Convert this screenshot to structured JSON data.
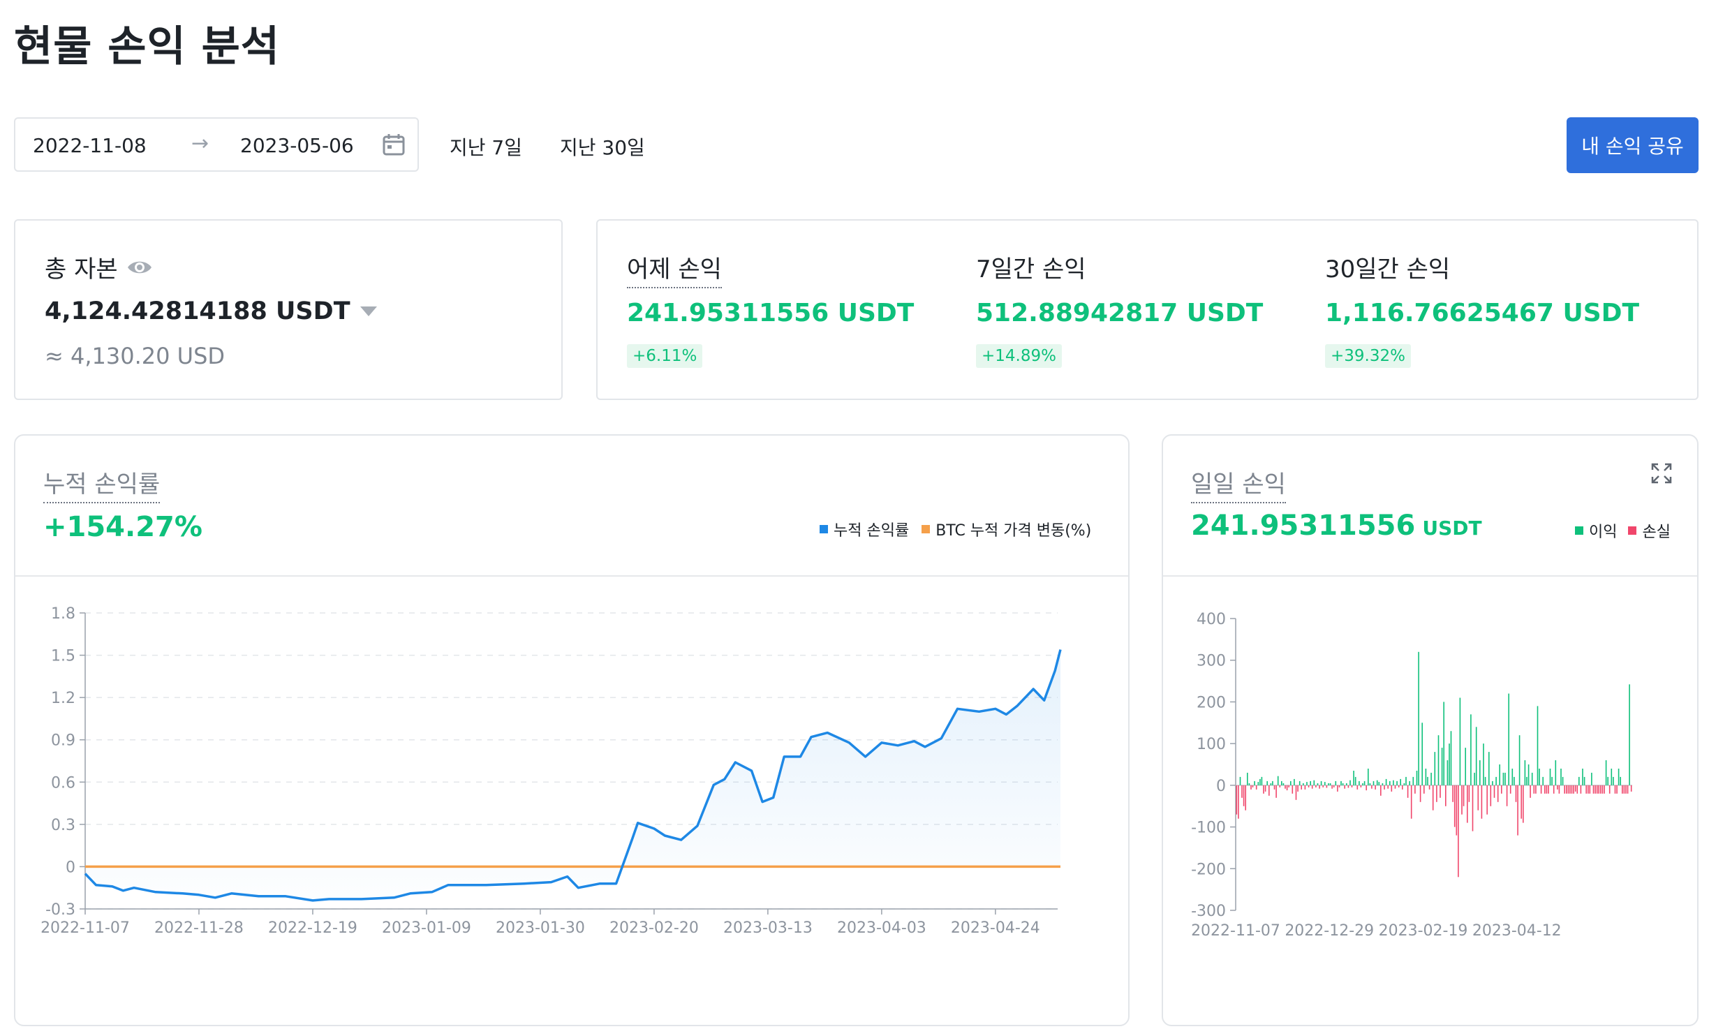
{
  "page": {
    "title": "현물 손익 분석"
  },
  "filters": {
    "start_date": "2022-11-08",
    "end_date": "2023-05-06",
    "arrow": "→",
    "quick_7": "지난 7일",
    "quick_30": "지난 30일",
    "share_label": "내 손익 공유"
  },
  "capital": {
    "label": "총 자본",
    "value": "4,124.42814188 USDT",
    "approx": "≈ 4,130.20 USD"
  },
  "pnl": {
    "yesterday": {
      "label": "어제 손익",
      "value": "241.95311556 USDT",
      "pct": "+6.11%"
    },
    "d7": {
      "label": "7일간 손익",
      "value": "512.88942817 USDT",
      "pct": "+14.89%"
    },
    "d30": {
      "label": "30일간 손익",
      "value": "1,116.76625467 USDT",
      "pct": "+39.32%"
    }
  },
  "cumulative": {
    "title": "누적 손익률",
    "value": "+154.27%",
    "legend_a": "누적 손익률",
    "legend_b": "BTC 누적 가격 변동(%)"
  },
  "daily": {
    "title": "일일 손익",
    "value": "241.95311556",
    "unit": "USDT",
    "legend_profit": "이익",
    "legend_loss": "손실"
  },
  "colors": {
    "accent": "#2f6fdc",
    "profit": "#0ec07b",
    "loss": "#f0466b",
    "line": "#1e88e5",
    "btc": "#f5a04a"
  },
  "icons": {
    "eye": "eye-icon",
    "calendar": "calendar-icon",
    "dropdown": "caret-down-icon",
    "expand": "expand-icon"
  },
  "chart_data": [
    {
      "type": "area",
      "x_ticks": [
        "2022-11-07",
        "2022-11-28",
        "2022-12-19",
        "2023-01-09",
        "2023-01-30",
        "2023-02-20",
        "2023-03-13",
        "2023-04-03",
        "2023-04-24"
      ],
      "y_ticks": [
        "1.8",
        "1.5",
        "1.2",
        "0.9",
        "0.6",
        "0.3",
        "0",
        "-0.3"
      ],
      "ylim": [
        -0.3,
        1.8
      ],
      "grid": true,
      "series": [
        {
          "name": "누적 손익률",
          "points": [
            [
              "2022-11-07",
              -0.05
            ],
            [
              "2022-11-09",
              -0.13
            ],
            [
              "2022-11-12",
              -0.14
            ],
            [
              "2022-11-14",
              -0.17
            ],
            [
              "2022-11-16",
              -0.15
            ],
            [
              "2022-11-20",
              -0.18
            ],
            [
              "2022-11-25",
              -0.19
            ],
            [
              "2022-11-28",
              -0.2
            ],
            [
              "2022-12-01",
              -0.22
            ],
            [
              "2022-12-04",
              -0.19
            ],
            [
              "2022-12-09",
              -0.21
            ],
            [
              "2022-12-14",
              -0.21
            ],
            [
              "2022-12-19",
              -0.24
            ],
            [
              "2022-12-22",
              -0.23
            ],
            [
              "2022-12-28",
              -0.23
            ],
            [
              "2023-01-03",
              -0.22
            ],
            [
              "2023-01-06",
              -0.19
            ],
            [
              "2023-01-10",
              -0.18
            ],
            [
              "2023-01-13",
              -0.13
            ],
            [
              "2023-01-20",
              -0.13
            ],
            [
              "2023-01-27",
              -0.12
            ],
            [
              "2023-02-01",
              -0.11
            ],
            [
              "2023-02-04",
              -0.07
            ],
            [
              "2023-02-06",
              -0.15
            ],
            [
              "2023-02-10",
              -0.12
            ],
            [
              "2023-02-13",
              -0.12
            ],
            [
              "2023-02-16",
              0.2
            ],
            [
              "2023-02-17",
              0.31
            ],
            [
              "2023-02-20",
              0.27
            ],
            [
              "2023-02-22",
              0.22
            ],
            [
              "2023-02-25",
              0.19
            ],
            [
              "2023-02-28",
              0.29
            ],
            [
              "2023-03-03",
              0.58
            ],
            [
              "2023-03-05",
              0.62
            ],
            [
              "2023-03-07",
              0.74
            ],
            [
              "2023-03-10",
              0.68
            ],
            [
              "2023-03-12",
              0.46
            ],
            [
              "2023-03-14",
              0.49
            ],
            [
              "2023-03-16",
              0.78
            ],
            [
              "2023-03-19",
              0.78
            ],
            [
              "2023-03-21",
              0.92
            ],
            [
              "2023-03-24",
              0.95
            ],
            [
              "2023-03-28",
              0.88
            ],
            [
              "2023-03-31",
              0.78
            ],
            [
              "2023-04-03",
              0.88
            ],
            [
              "2023-04-06",
              0.86
            ],
            [
              "2023-04-09",
              0.89
            ],
            [
              "2023-04-11",
              0.85
            ],
            [
              "2023-04-14",
              0.91
            ],
            [
              "2023-04-17",
              1.12
            ],
            [
              "2023-04-21",
              1.1
            ],
            [
              "2023-04-24",
              1.12
            ],
            [
              "2023-04-26",
              1.08
            ],
            [
              "2023-04-28",
              1.14
            ],
            [
              "2023-05-01",
              1.26
            ],
            [
              "2023-05-03",
              1.18
            ],
            [
              "2023-05-05",
              1.39
            ],
            [
              "2023-05-06",
              1.54
            ]
          ]
        },
        {
          "name": "BTC 누적 가격 변동(%)",
          "constant": 0
        }
      ]
    },
    {
      "type": "bar",
      "x_ticks": [
        "2022-11-07",
        "2022-12-29",
        "2023-02-19",
        "2023-04-12"
      ],
      "y_ticks": [
        "400",
        "300",
        "200",
        "100",
        "0",
        "-100",
        "-200",
        "-300"
      ],
      "ylim": [
        -300,
        400
      ],
      "series": [
        {
          "name": "이익/손실",
          "values": [
            -70,
            -80,
            20,
            -30,
            -50,
            -60,
            30,
            5,
            -10,
            -5,
            10,
            -10,
            8,
            15,
            20,
            -20,
            -15,
            10,
            -25,
            5,
            10,
            -10,
            -30,
            22,
            -5,
            10,
            5,
            -8,
            -12,
            -5,
            10,
            -20,
            15,
            -35,
            -15,
            10,
            -10,
            5,
            -10,
            8,
            -5,
            10,
            -8,
            12,
            -5,
            5,
            -8,
            10,
            -5,
            8,
            -6,
            5,
            5,
            -8,
            -5,
            10,
            -15,
            -5,
            10,
            5,
            -8,
            5,
            -6,
            12,
            -5,
            35,
            20,
            -10,
            10,
            -5,
            5,
            10,
            -12,
            40,
            5,
            -8,
            10,
            -10,
            12,
            8,
            -25,
            5,
            -10,
            15,
            -8,
            10,
            -15,
            12,
            -8,
            10,
            -5,
            15,
            -10,
            5,
            20,
            -30,
            10,
            -80,
            20,
            -20,
            35,
            320,
            -40,
            150,
            -20,
            40,
            20,
            -10,
            30,
            -60,
            80,
            -40,
            120,
            -30,
            90,
            200,
            -50,
            60,
            100,
            130,
            -40,
            -100,
            -120,
            -220,
            210,
            -70,
            -50,
            90,
            -90,
            -40,
            170,
            -110,
            30,
            140,
            -60,
            60,
            -80,
            100,
            20,
            -70,
            80,
            -50,
            10,
            -30,
            20,
            -40,
            50,
            -20,
            30,
            30,
            -50,
            220,
            -20,
            40,
            20,
            -40,
            -120,
            120,
            -80,
            -90,
            60,
            20,
            50,
            -30,
            30,
            -20,
            -20,
            190,
            40,
            -20,
            20,
            -20,
            -20,
            -20,
            40,
            20,
            -20,
            60,
            -10,
            -20,
            40,
            20,
            -20,
            -20,
            -20,
            -20,
            -20,
            -20,
            -15,
            -20,
            20,
            -20,
            40,
            20,
            -20,
            -20,
            -20,
            30,
            -20,
            -20,
            -20,
            -20,
            -20,
            -20,
            -20,
            60,
            20,
            -20,
            40,
            20,
            -20,
            -20,
            40,
            20,
            -20,
            -20,
            -20,
            -20,
            242,
            -15
          ]
        }
      ]
    }
  ]
}
